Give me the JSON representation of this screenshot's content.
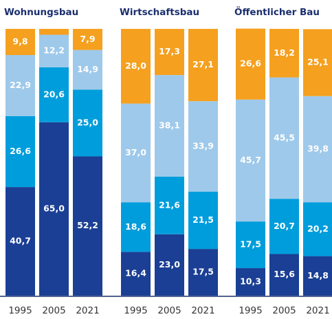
{
  "chart_data": [
    {
      "type": "bar",
      "stacked": true,
      "title": "Wohnungsbau",
      "categories": [
        "1995",
        "2005",
        "2021"
      ],
      "ylim": [
        0,
        100
      ],
      "series": [
        {
          "color": "#1a3f94",
          "values": [
            40.7,
            65.0,
            52.2
          ],
          "value_labels": [
            "40,7",
            "65,0",
            "52,2"
          ]
        },
        {
          "color": "#009ddc",
          "values": [
            26.6,
            20.6,
            25.0
          ],
          "value_labels": [
            "26,6",
            "20,6",
            "25,0"
          ]
        },
        {
          "color": "#9ec9ea",
          "values": [
            22.9,
            12.2,
            14.9
          ],
          "value_labels": [
            "22,9",
            "12,2",
            "14,9"
          ]
        },
        {
          "color": "#f5a01f",
          "values": [
            9.8,
            2.2,
            7.9
          ],
          "value_labels": [
            "9,8",
            "2,2",
            "7,9"
          ]
        }
      ]
    },
    {
      "type": "bar",
      "stacked": true,
      "title": "Wirtschaftsbau",
      "categories": [
        "1995",
        "2005",
        "2021"
      ],
      "ylim": [
        0,
        100
      ],
      "series": [
        {
          "color": "#1a3f94",
          "values": [
            16.4,
            23.0,
            17.5
          ],
          "value_labels": [
            "16,4",
            "23,0",
            "17,5"
          ]
        },
        {
          "color": "#009ddc",
          "values": [
            18.6,
            21.6,
            21.5
          ],
          "value_labels": [
            "18,6",
            "21,6",
            "21,5"
          ]
        },
        {
          "color": "#9ec9ea",
          "values": [
            37.0,
            38.1,
            33.9
          ],
          "value_labels": [
            "37,0",
            "38,1",
            "33,9"
          ]
        },
        {
          "color": "#f5a01f",
          "values": [
            28.0,
            17.3,
            27.1
          ],
          "value_labels": [
            "28,0",
            "17,3",
            "27,1"
          ]
        }
      ]
    },
    {
      "type": "bar",
      "stacked": true,
      "title": "Öffentlicher Bau",
      "categories": [
        "1995",
        "2005",
        "2021"
      ],
      "ylim": [
        0,
        100
      ],
      "series": [
        {
          "color": "#1a3f94",
          "values": [
            10.3,
            15.6,
            14.8
          ],
          "value_labels": [
            "10,3",
            "15,6",
            "14,8"
          ]
        },
        {
          "color": "#009ddc",
          "values": [
            17.5,
            20.7,
            20.2
          ],
          "value_labels": [
            "17,5",
            "20,7",
            "20,2"
          ]
        },
        {
          "color": "#9ec9ea",
          "values": [
            45.7,
            45.5,
            39.8
          ],
          "value_labels": [
            "45,7",
            "45,5",
            "39,8"
          ]
        },
        {
          "color": "#f5a01f",
          "values": [
            26.6,
            18.2,
            25.1
          ],
          "value_labels": [
            "26,6",
            "18,2",
            "25,1"
          ]
        }
      ]
    }
  ]
}
